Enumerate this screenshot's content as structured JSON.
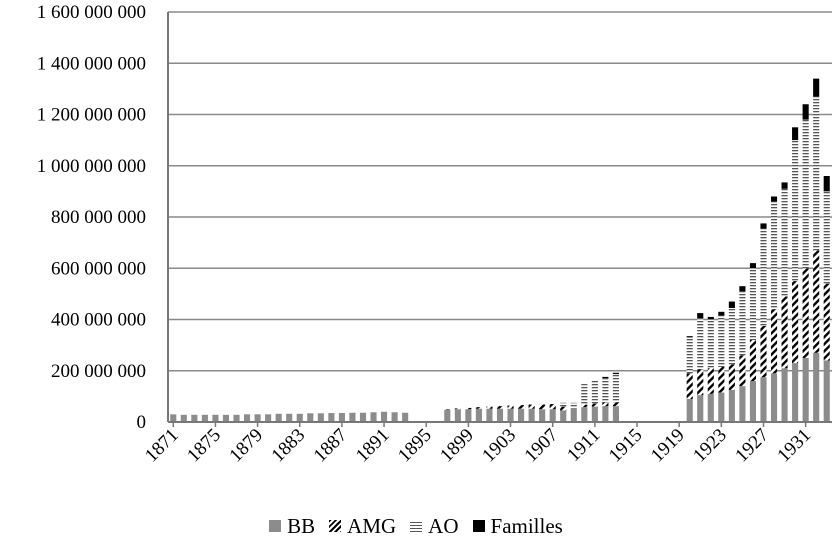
{
  "chart_data": {
    "type": "bar",
    "stacked": true,
    "title": "",
    "xlabel": "",
    "ylabel": "",
    "ylim": [
      0,
      1600000000
    ],
    "yticks": [
      "0",
      "200 000 000",
      "400 000 000",
      "600 000 000",
      "800 000 000",
      "1 000 000 000",
      "1 200 000 000",
      "1 400 000 000",
      "1 600 000 000"
    ],
    "ytick_values": [
      0,
      200000000,
      400000000,
      600000000,
      800000000,
      1000000000,
      1200000000,
      1400000000,
      1600000000
    ],
    "xtick_labels": [
      "1871",
      "1875",
      "1879",
      "1883",
      "1887",
      "1891",
      "1895",
      "1899",
      "1903",
      "1907",
      "1911",
      "1915",
      "1919",
      "1923",
      "1927",
      "1931"
    ],
    "grid": true,
    "legend_position": "bottom",
    "categories": [
      "1871",
      "1872",
      "1873",
      "1874",
      "1875",
      "1876",
      "1877",
      "1878",
      "1879",
      "1880",
      "1881",
      "1882",
      "1883",
      "1884",
      "1885",
      "1886",
      "1887",
      "1888",
      "1889",
      "1890",
      "1891",
      "1892",
      "1893",
      "1894",
      "1895",
      "1896",
      "1897",
      "1898",
      "1899",
      "1900",
      "1901",
      "1902",
      "1903",
      "1904",
      "1905",
      "1906",
      "1907",
      "1908",
      "1909",
      "1910",
      "1911",
      "1912",
      "1913",
      "1914",
      "1915",
      "1916",
      "1917",
      "1918",
      "1919",
      "1920",
      "1921",
      "1922",
      "1923",
      "1924",
      "1925",
      "1926",
      "1927",
      "1928",
      "1929",
      "1930",
      "1931",
      "1932",
      "1933"
    ],
    "series": [
      {
        "name": "BB",
        "color": "#8c8c8c",
        "values": [
          30000000,
          28000000,
          28000000,
          28000000,
          28000000,
          28000000,
          28000000,
          30000000,
          30000000,
          30000000,
          32000000,
          32000000,
          32000000,
          34000000,
          34000000,
          35000000,
          35000000,
          36000000,
          36000000,
          38000000,
          40000000,
          38000000,
          36000000,
          0,
          0,
          0,
          48000000,
          50000000,
          50000000,
          52000000,
          52000000,
          52000000,
          52000000,
          52000000,
          52000000,
          50000000,
          50000000,
          45000000,
          55000000,
          58000000,
          60000000,
          62000000,
          62000000,
          0,
          0,
          0,
          0,
          0,
          0,
          90000000,
          105000000,
          110000000,
          115000000,
          125000000,
          140000000,
          160000000,
          175000000,
          190000000,
          210000000,
          230000000,
          250000000,
          270000000,
          240000000
        ]
      },
      {
        "name": "AMG",
        "color": "#bfbfbf",
        "values": [
          0,
          0,
          0,
          0,
          0,
          0,
          0,
          0,
          0,
          0,
          0,
          0,
          0,
          0,
          0,
          0,
          0,
          0,
          0,
          0,
          0,
          0,
          0,
          0,
          0,
          0,
          2000000,
          3000000,
          5000000,
          6000000,
          8000000,
          10000000,
          12000000,
          14000000,
          16000000,
          18000000,
          20000000,
          15000000,
          0,
          10000000,
          12000000,
          14000000,
          15000000,
          0,
          0,
          0,
          0,
          0,
          0,
          100000000,
          100000000,
          100000000,
          100000000,
          100000000,
          120000000,
          160000000,
          200000000,
          250000000,
          280000000,
          320000000,
          350000000,
          400000000,
          300000000
        ]
      },
      {
        "name": "AO",
        "color": "#d9d9d9",
        "values": [
          0,
          0,
          0,
          0,
          0,
          0,
          0,
          0,
          0,
          0,
          0,
          0,
          0,
          0,
          0,
          0,
          0,
          0,
          0,
          0,
          0,
          0,
          0,
          0,
          0,
          0,
          0,
          0,
          0,
          0,
          0,
          0,
          0,
          0,
          0,
          0,
          0,
          15000000,
          20000000,
          80000000,
          90000000,
          95000000,
          110000000,
          0,
          0,
          0,
          0,
          0,
          0,
          140000000,
          200000000,
          190000000,
          200000000,
          220000000,
          250000000,
          280000000,
          380000000,
          420000000,
          420000000,
          550000000,
          580000000,
          600000000,
          360000000
        ]
      },
      {
        "name": "Familles",
        "color": "#000000",
        "values": [
          0,
          0,
          0,
          0,
          0,
          0,
          0,
          0,
          0,
          0,
          0,
          0,
          0,
          0,
          0,
          0,
          0,
          0,
          0,
          0,
          0,
          0,
          0,
          0,
          0,
          0,
          0,
          0,
          0,
          0,
          0,
          0,
          0,
          0,
          0,
          0,
          0,
          0,
          0,
          0,
          0,
          5000000,
          5000000,
          0,
          0,
          0,
          0,
          0,
          0,
          5000000,
          20000000,
          10000000,
          15000000,
          25000000,
          20000000,
          20000000,
          20000000,
          20000000,
          25000000,
          50000000,
          60000000,
          70000000,
          60000000
        ]
      }
    ]
  }
}
